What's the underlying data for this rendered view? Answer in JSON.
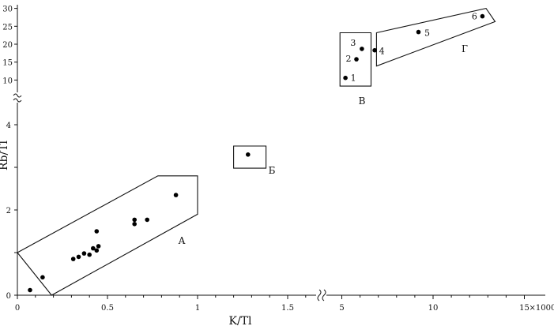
{
  "chart_data": {
    "type": "scatter",
    "xlabel": "K/Tl",
    "ylabel": "Rb/Tl",
    "x_unit_label": "×1000",
    "x_ticks_left": [
      "0",
      "0.5",
      "1",
      "1.5"
    ],
    "x_ticks_right": [
      "5",
      "10",
      "15"
    ],
    "y_ticks_lower": [
      "0",
      "2",
      "4"
    ],
    "y_ticks_upper": [
      "10",
      "15",
      "20",
      "25",
      "30"
    ],
    "x_ranges": [
      [
        0,
        1.6
      ],
      [
        4.5,
        15
      ]
    ],
    "y_ranges": [
      [
        0,
        4.3
      ],
      [
        8,
        31
      ]
    ],
    "grid": false,
    "series": [
      {
        "points": [
          {
            "x": 0.07,
            "y": 0.12
          },
          {
            "x": 0.14,
            "y": 0.42
          },
          {
            "x": 0.31,
            "y": 0.85
          },
          {
            "x": 0.34,
            "y": 0.9
          },
          {
            "x": 0.37,
            "y": 0.98
          },
          {
            "x": 0.4,
            "y": 0.95
          },
          {
            "x": 0.42,
            "y": 1.1
          },
          {
            "x": 0.44,
            "y": 1.05
          },
          {
            "x": 0.45,
            "y": 1.15
          },
          {
            "x": 0.44,
            "y": 1.5
          },
          {
            "x": 0.65,
            "y": 1.67
          },
          {
            "x": 0.65,
            "y": 1.77
          },
          {
            "x": 0.72,
            "y": 1.77
          },
          {
            "x": 0.88,
            "y": 2.35
          },
          {
            "x": 1.28,
            "y": 3.3
          }
        ]
      },
      {
        "points": [
          {
            "x": 5.2,
            "y": 10.6,
            "label": "1"
          },
          {
            "x": 5.8,
            "y": 15.8,
            "label": "2"
          },
          {
            "x": 6.1,
            "y": 18.7,
            "label": "3"
          },
          {
            "x": 6.8,
            "y": 18.3,
            "label": "4"
          },
          {
            "x": 9.2,
            "y": 23.4,
            "label": "5"
          },
          {
            "x": 12.7,
            "y": 27.8,
            "label": "6"
          }
        ]
      }
    ],
    "regions": [
      {
        "label": "А",
        "polygon": [
          [
            0,
            1.0
          ],
          [
            0.78,
            2.8
          ],
          [
            1.0,
            2.8
          ],
          [
            1.0,
            1.9
          ],
          [
            0.19,
            0
          ]
        ]
      },
      {
        "label": "Б",
        "polygon": [
          [
            1.2,
            3.5
          ],
          [
            1.38,
            3.5
          ],
          [
            1.38,
            2.98
          ],
          [
            1.2,
            2.98
          ]
        ]
      },
      {
        "label": "В",
        "polygon": [
          [
            4.9,
            23.2
          ],
          [
            6.6,
            23.2
          ],
          [
            6.6,
            8.3
          ],
          [
            4.9,
            8.3
          ]
        ]
      },
      {
        "label": "Г",
        "polygon": [
          [
            6.9,
            23.2
          ],
          [
            12.9,
            30.0
          ],
          [
            13.4,
            26.3
          ],
          [
            6.9,
            13.9
          ]
        ]
      }
    ]
  }
}
